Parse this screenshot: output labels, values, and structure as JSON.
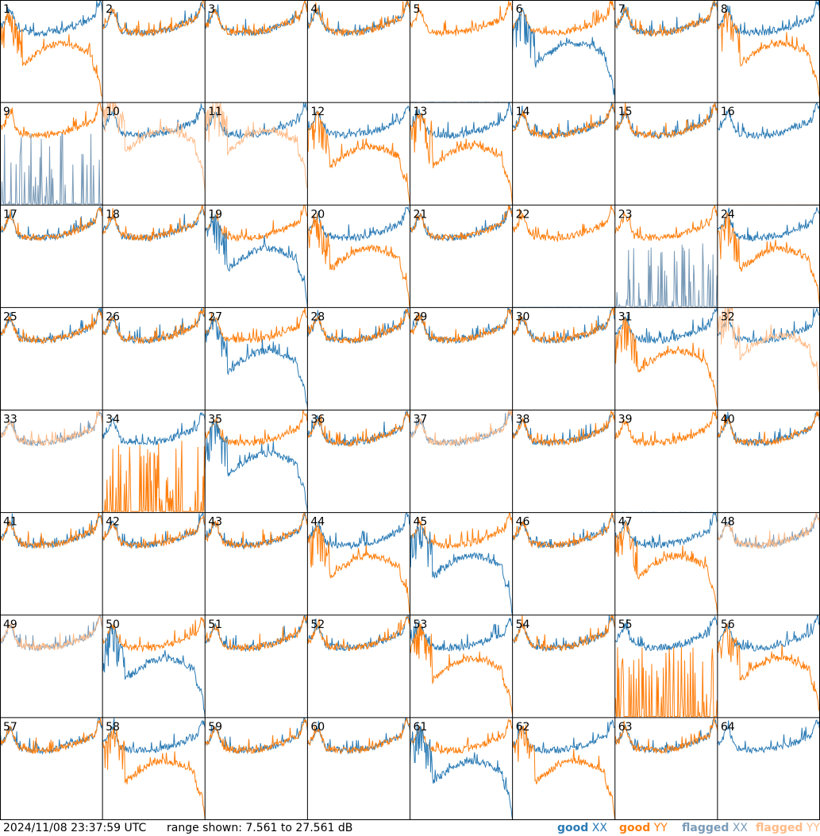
{
  "footer": {
    "timestamp": "2024/11/08 23:37:59 UTC",
    "range_text": "range shown: 7.561 to 27.561 dB"
  },
  "legend": [
    {
      "word": "good",
      "pol": "XX",
      "color": "#2b7bb5"
    },
    {
      "word": "good",
      "pol": "YY",
      "color": "#ff7f0e"
    },
    {
      "word": "flagged",
      "pol": "XX",
      "color": "#7a9bb8"
    },
    {
      "word": "flagged",
      "pol": "YY",
      "color": "#ffbb88"
    }
  ],
  "colors": {
    "good_xx": "#2b7bb5",
    "good_yy": "#ff7f0e",
    "flagged_xx": "#7a9bb8",
    "flagged_yy": "#ffbb88",
    "grid": "#000000"
  },
  "chart_data": {
    "type": "line",
    "layout": "8x8 small multiples",
    "units": "dB",
    "ylim": [
      7.561,
      27.561
    ],
    "x": "channel (unlabeled)",
    "panel_labels": [
      "1",
      "2",
      "3",
      "4",
      "5",
      "6",
      "7",
      "8",
      "9",
      "10",
      "11",
      "12",
      "13",
      "14",
      "15",
      "16",
      "17",
      "18",
      "19",
      "20",
      "21",
      "22",
      "23",
      "24",
      "25",
      "26",
      "27",
      "28",
      "29",
      "30",
      "31",
      "32",
      "33",
      "34",
      "35",
      "36",
      "37",
      "38",
      "39",
      "40",
      "41",
      "42",
      "43",
      "44",
      "45",
      "46",
      "47",
      "48",
      "49",
      "50",
      "51",
      "52",
      "53",
      "54",
      "55",
      "56",
      "57",
      "58",
      "59",
      "60",
      "61",
      "62",
      "63",
      "64"
    ],
    "baseline_level_db": 22.5,
    "series_note": "each panel shows XX and YY power spectra; values approximate",
    "panel_states": {
      "normal": [
        2,
        3,
        4,
        7,
        14,
        15,
        17,
        18,
        21,
        25,
        26,
        28,
        29,
        30,
        36,
        38,
        40,
        41,
        42,
        43,
        46,
        51,
        52,
        54,
        57,
        59,
        60,
        63
      ],
      "xx_low_hump": [
        6,
        19,
        27,
        35,
        45,
        50,
        61
      ],
      "yy_low_hump": [
        1,
        8,
        12,
        13,
        20,
        24,
        31,
        44,
        47,
        53,
        56,
        58,
        62
      ],
      "xx_dead": [
        5,
        22,
        39
      ],
      "yy_dead": [
        16,
        64
      ],
      "xx_spiky_flagged": [
        9,
        23
      ],
      "yy_spiky_flagged": [
        34,
        55
      ],
      "yy_flagged": [
        10,
        11,
        32
      ],
      "both_flagged": [
        33,
        37,
        48,
        49
      ]
    }
  }
}
